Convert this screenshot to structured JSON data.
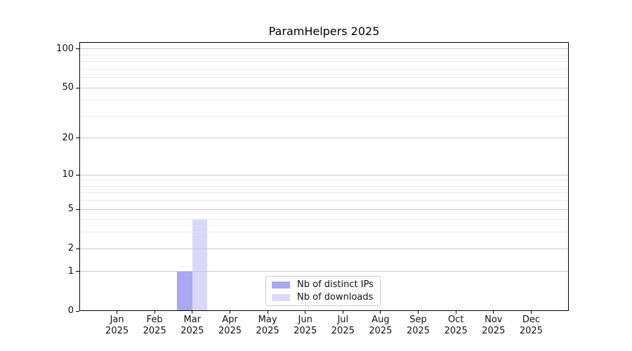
{
  "chart_data": {
    "type": "bar",
    "title": "ParamHelpers 2025",
    "categories": [
      {
        "month": "Jan",
        "year": "2025"
      },
      {
        "month": "Feb",
        "year": "2025"
      },
      {
        "month": "Mar",
        "year": "2025"
      },
      {
        "month": "Apr",
        "year": "2025"
      },
      {
        "month": "May",
        "year": "2025"
      },
      {
        "month": "Jun",
        "year": "2025"
      },
      {
        "month": "Jul",
        "year": "2025"
      },
      {
        "month": "Aug",
        "year": "2025"
      },
      {
        "month": "Sep",
        "year": "2025"
      },
      {
        "month": "Oct",
        "year": "2025"
      },
      {
        "month": "Nov",
        "year": "2025"
      },
      {
        "month": "Dec",
        "year": "2025"
      }
    ],
    "series": [
      {
        "name": "Nb of distinct IPs",
        "color": "#a8a8f3",
        "values": [
          0,
          0,
          1,
          0,
          0,
          0,
          0,
          0,
          0,
          0,
          0,
          0
        ]
      },
      {
        "name": "Nb of downloads",
        "color": "#d9d9f9",
        "values": [
          0,
          0,
          4,
          0,
          0,
          0,
          0,
          0,
          0,
          0,
          0,
          0
        ]
      }
    ],
    "yscale": "log1p",
    "ylim": [
      0,
      113
    ],
    "yticks": [
      0,
      1,
      2,
      5,
      10,
      20,
      50,
      100
    ],
    "minor_yticks": [
      3,
      4,
      6,
      7,
      8,
      9,
      30,
      40,
      60,
      70,
      80,
      90
    ],
    "grid": "horizontal",
    "legend_position": "lower-center",
    "colors": {
      "major_grid": "#c8c8c8",
      "minor_grid": "#ececec",
      "spine": "#000000",
      "legend_border": "#cccccc",
      "background": "#ffffff"
    }
  }
}
